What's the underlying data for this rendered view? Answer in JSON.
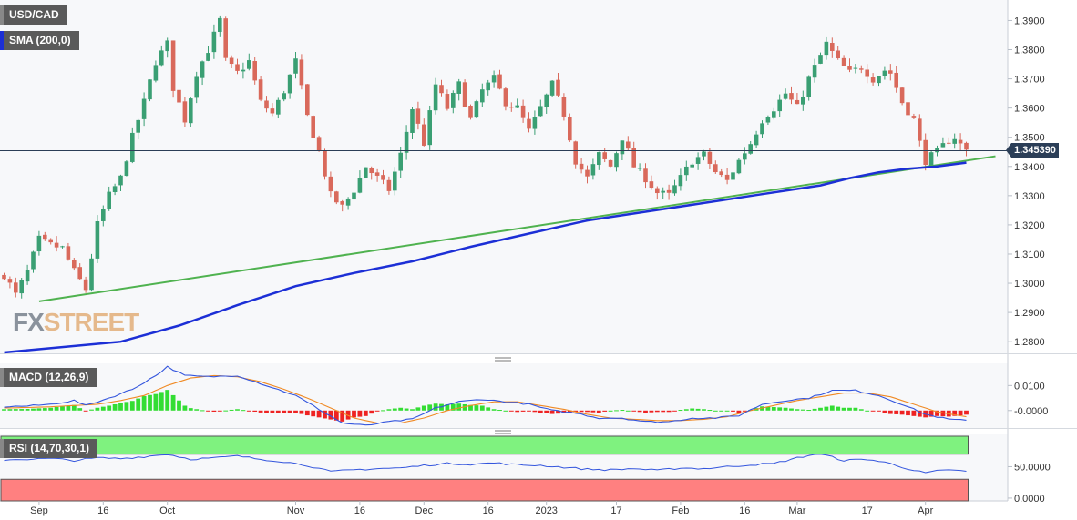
{
  "header": {
    "symbol": "USD/CAD",
    "sma_label": "SMA (200,0)",
    "macd_label": "MACD (12,26,9)",
    "rsi_label": "RSI (14,70,30,1)",
    "last_price": "1.345390"
  },
  "logo": {
    "fx": "FX",
    "street": "STREET"
  },
  "colors": {
    "bull": "#3a9f73",
    "bear": "#d9695b",
    "sma": "#1c2fd6",
    "trendline": "#4fb24f",
    "macd": "#3355dd",
    "signal": "#f08a24",
    "rsi": "#3355dd",
    "rsi_overbought": "#7ff27f",
    "rsi_oversold": "#ff8080"
  },
  "chart_data": [
    {
      "type": "candlestick",
      "title": "USD/CAD",
      "y_ticks": [
        "1.3900",
        "1.3800",
        "1.3700",
        "1.3600",
        "1.3500",
        "1.3400",
        "1.3300",
        "1.3200",
        "1.3100",
        "1.3000",
        "1.2900",
        "1.2800"
      ],
      "ylim": [
        1.276,
        1.397
      ],
      "x_ticks": [
        {
          "label": "Sep",
          "index": 6
        },
        {
          "label": "16",
          "index": 17
        },
        {
          "label": "Oct",
          "index": 28
        },
        {
          "label": "Nov",
          "index": 50
        },
        {
          "label": "16",
          "index": 61
        },
        {
          "label": "Dec",
          "index": 72
        },
        {
          "label": "16",
          "index": 83
        },
        {
          "label": "2023",
          "index": 93
        },
        {
          "label": "17",
          "index": 105
        },
        {
          "label": "Feb",
          "index": 116
        },
        {
          "label": "16",
          "index": 127
        },
        {
          "label": "Mar",
          "index": 136
        },
        {
          "label": "17",
          "index": 148
        },
        {
          "label": "Apr",
          "index": 158
        }
      ],
      "n_bars": 166,
      "anchors": [
        [
          0,
          1.303
        ],
        [
          2,
          1.296
        ],
        [
          4,
          1.304
        ],
        [
          6,
          1.315
        ],
        [
          8,
          1.313
        ],
        [
          10,
          1.312
        ],
        [
          12,
          1.304
        ],
        [
          14,
          1.298
        ],
        [
          16,
          1.32
        ],
        [
          18,
          1.33
        ],
        [
          20,
          1.336
        ],
        [
          22,
          1.35
        ],
        [
          24,
          1.362
        ],
        [
          26,
          1.376
        ],
        [
          28,
          1.382
        ],
        [
          29,
          1.367
        ],
        [
          31,
          1.356
        ],
        [
          33,
          1.372
        ],
        [
          35,
          1.38
        ],
        [
          37,
          1.39
        ],
        [
          38,
          1.376
        ],
        [
          40,
          1.372
        ],
        [
          42,
          1.376
        ],
        [
          44,
          1.362
        ],
        [
          46,
          1.358
        ],
        [
          48,
          1.366
        ],
        [
          50,
          1.376
        ],
        [
          52,
          1.357
        ],
        [
          54,
          1.345
        ],
        [
          56,
          1.33
        ],
        [
          58,
          1.326
        ],
        [
          60,
          1.332
        ],
        [
          62,
          1.34
        ],
        [
          64,
          1.336
        ],
        [
          66,
          1.332
        ],
        [
          68,
          1.344
        ],
        [
          70,
          1.36
        ],
        [
          72,
          1.348
        ],
        [
          74,
          1.368
        ],
        [
          76,
          1.36
        ],
        [
          78,
          1.368
        ],
        [
          80,
          1.356
        ],
        [
          82,
          1.366
        ],
        [
          84,
          1.37
        ],
        [
          86,
          1.362
        ],
        [
          88,
          1.36
        ],
        [
          90,
          1.352
        ],
        [
          92,
          1.36
        ],
        [
          94,
          1.368
        ],
        [
          96,
          1.358
        ],
        [
          98,
          1.342
        ],
        [
          100,
          1.336
        ],
        [
          102,
          1.344
        ],
        [
          104,
          1.34
        ],
        [
          106,
          1.35
        ],
        [
          108,
          1.34
        ],
        [
          110,
          1.336
        ],
        [
          112,
          1.331
        ],
        [
          114,
          1.33
        ],
        [
          116,
          1.336
        ],
        [
          118,
          1.342
        ],
        [
          120,
          1.344
        ],
        [
          122,
          1.338
        ],
        [
          124,
          1.335
        ],
        [
          126,
          1.342
        ],
        [
          128,
          1.348
        ],
        [
          130,
          1.356
        ],
        [
          132,
          1.36
        ],
        [
          134,
          1.365
        ],
        [
          136,
          1.36
        ],
        [
          138,
          1.37
        ],
        [
          140,
          1.378
        ],
        [
          141,
          1.382
        ],
        [
          143,
          1.376
        ],
        [
          145,
          1.372
        ],
        [
          147,
          1.374
        ],
        [
          149,
          1.37
        ],
        [
          151,
          1.373
        ],
        [
          152,
          1.372
        ],
        [
          154,
          1.362
        ],
        [
          156,
          1.356
        ],
        [
          157,
          1.348
        ],
        [
          158,
          1.342
        ],
        [
          160,
          1.345
        ],
        [
          162,
          1.349
        ],
        [
          163,
          1.35
        ],
        [
          164,
          1.3475
        ],
        [
          165,
          1.3454
        ]
      ],
      "sma_200": [
        [
          0,
          1.2763
        ],
        [
          20,
          1.28
        ],
        [
          30,
          1.2855
        ],
        [
          40,
          1.2925
        ],
        [
          50,
          1.299
        ],
        [
          60,
          1.3035
        ],
        [
          70,
          1.3075
        ],
        [
          80,
          1.3125
        ],
        [
          90,
          1.317
        ],
        [
          100,
          1.3215
        ],
        [
          110,
          1.3245
        ],
        [
          120,
          1.3275
        ],
        [
          130,
          1.3305
        ],
        [
          140,
          1.3335
        ],
        [
          145,
          1.336
        ],
        [
          150,
          1.338
        ],
        [
          155,
          1.3392
        ],
        [
          160,
          1.34
        ],
        [
          165,
          1.3413
        ]
      ],
      "trendline": [
        [
          6,
          1.2938
        ],
        [
          170,
          1.3435
        ]
      ],
      "last_close": 1.34539
    },
    {
      "type": "line",
      "title": "MACD (12,26,9)",
      "y_ticks": [
        "0.0100",
        "-0.0000"
      ],
      "ylim": [
        -0.007,
        0.0185
      ],
      "macd": [
        [
          0,
          0.0015
        ],
        [
          4,
          0.0018
        ],
        [
          8,
          0.0025
        ],
        [
          12,
          0.004
        ],
        [
          14,
          0.002
        ],
        [
          18,
          0.005
        ],
        [
          22,
          0.0085
        ],
        [
          26,
          0.014
        ],
        [
          28,
          0.0175
        ],
        [
          31,
          0.014
        ],
        [
          35,
          0.0135
        ],
        [
          40,
          0.014
        ],
        [
          45,
          0.01
        ],
        [
          50,
          0.006
        ],
        [
          54,
          0.0005
        ],
        [
          58,
          -0.005
        ],
        [
          62,
          -0.006
        ],
        [
          66,
          -0.0045
        ],
        [
          70,
          -0.0035
        ],
        [
          74,
          0.001
        ],
        [
          78,
          0.0035
        ],
        [
          82,
          0.0045
        ],
        [
          86,
          0.0035
        ],
        [
          90,
          0.0025
        ],
        [
          94,
          0.0
        ],
        [
          98,
          -0.001
        ],
        [
          102,
          -0.003
        ],
        [
          106,
          -0.003
        ],
        [
          110,
          -0.0045
        ],
        [
          114,
          -0.0045
        ],
        [
          118,
          -0.003
        ],
        [
          122,
          -0.003
        ],
        [
          126,
          -0.002
        ],
        [
          130,
          0.0025
        ],
        [
          134,
          0.004
        ],
        [
          138,
          0.005
        ],
        [
          142,
          0.008
        ],
        [
          146,
          0.008
        ],
        [
          150,
          0.006
        ],
        [
          154,
          0.0025
        ],
        [
          158,
          -0.0015
        ],
        [
          162,
          -0.0035
        ],
        [
          165,
          -0.004
        ]
      ],
      "signal": [
        [
          0,
          0.001
        ],
        [
          4,
          0.0012
        ],
        [
          8,
          0.0015
        ],
        [
          12,
          0.002
        ],
        [
          16,
          0.0025
        ],
        [
          20,
          0.004
        ],
        [
          24,
          0.006
        ],
        [
          28,
          0.01
        ],
        [
          32,
          0.013
        ],
        [
          36,
          0.014
        ],
        [
          40,
          0.0135
        ],
        [
          44,
          0.0115
        ],
        [
          48,
          0.0085
        ],
        [
          52,
          0.005
        ],
        [
          56,
          0.001
        ],
        [
          60,
          -0.003
        ],
        [
          64,
          -0.005
        ],
        [
          68,
          -0.005
        ],
        [
          72,
          -0.003
        ],
        [
          76,
          0.0
        ],
        [
          80,
          0.002
        ],
        [
          84,
          0.0035
        ],
        [
          88,
          0.0035
        ],
        [
          92,
          0.002
        ],
        [
          96,
          0.0005
        ],
        [
          100,
          -0.0015
        ],
        [
          104,
          -0.003
        ],
        [
          108,
          -0.0035
        ],
        [
          112,
          -0.004
        ],
        [
          116,
          -0.004
        ],
        [
          120,
          -0.0035
        ],
        [
          124,
          -0.0025
        ],
        [
          128,
          0.0
        ],
        [
          132,
          0.002
        ],
        [
          136,
          0.004
        ],
        [
          140,
          0.0055
        ],
        [
          144,
          0.007
        ],
        [
          148,
          0.007
        ],
        [
          152,
          0.0055
        ],
        [
          156,
          0.0025
        ],
        [
          160,
          -0.0005
        ],
        [
          165,
          -0.0025
        ]
      ]
    },
    {
      "type": "line",
      "title": "RSI (14,70,30,1)",
      "y_ticks": [
        "50.0000",
        "0.0000"
      ],
      "ylim": [
        -3,
        100
      ],
      "overbought": 70,
      "oversold": 30,
      "rsi": [
        [
          0,
          61
        ],
        [
          4,
          62
        ],
        [
          8,
          63
        ],
        [
          12,
          60
        ],
        [
          16,
          64
        ],
        [
          20,
          63
        ],
        [
          24,
          66
        ],
        [
          28,
          70
        ],
        [
          32,
          62
        ],
        [
          36,
          64
        ],
        [
          40,
          67
        ],
        [
          44,
          62
        ],
        [
          48,
          58
        ],
        [
          52,
          52
        ],
        [
          56,
          42
        ],
        [
          60,
          45
        ],
        [
          64,
          47
        ],
        [
          68,
          48
        ],
        [
          72,
          52
        ],
        [
          76,
          55
        ],
        [
          80,
          54
        ],
        [
          84,
          56
        ],
        [
          88,
          53
        ],
        [
          92,
          52
        ],
        [
          96,
          49
        ],
        [
          100,
          46
        ],
        [
          104,
          45
        ],
        [
          108,
          47
        ],
        [
          112,
          44
        ],
        [
          116,
          48
        ],
        [
          120,
          47
        ],
        [
          124,
          50
        ],
        [
          128,
          53
        ],
        [
          132,
          55
        ],
        [
          136,
          64
        ],
        [
          139,
          70
        ],
        [
          141,
          68
        ],
        [
          144,
          60
        ],
        [
          148,
          62
        ],
        [
          152,
          55
        ],
        [
          156,
          44
        ],
        [
          158,
          40
        ],
        [
          160,
          43
        ],
        [
          163,
          45
        ],
        [
          165,
          42
        ]
      ]
    }
  ]
}
